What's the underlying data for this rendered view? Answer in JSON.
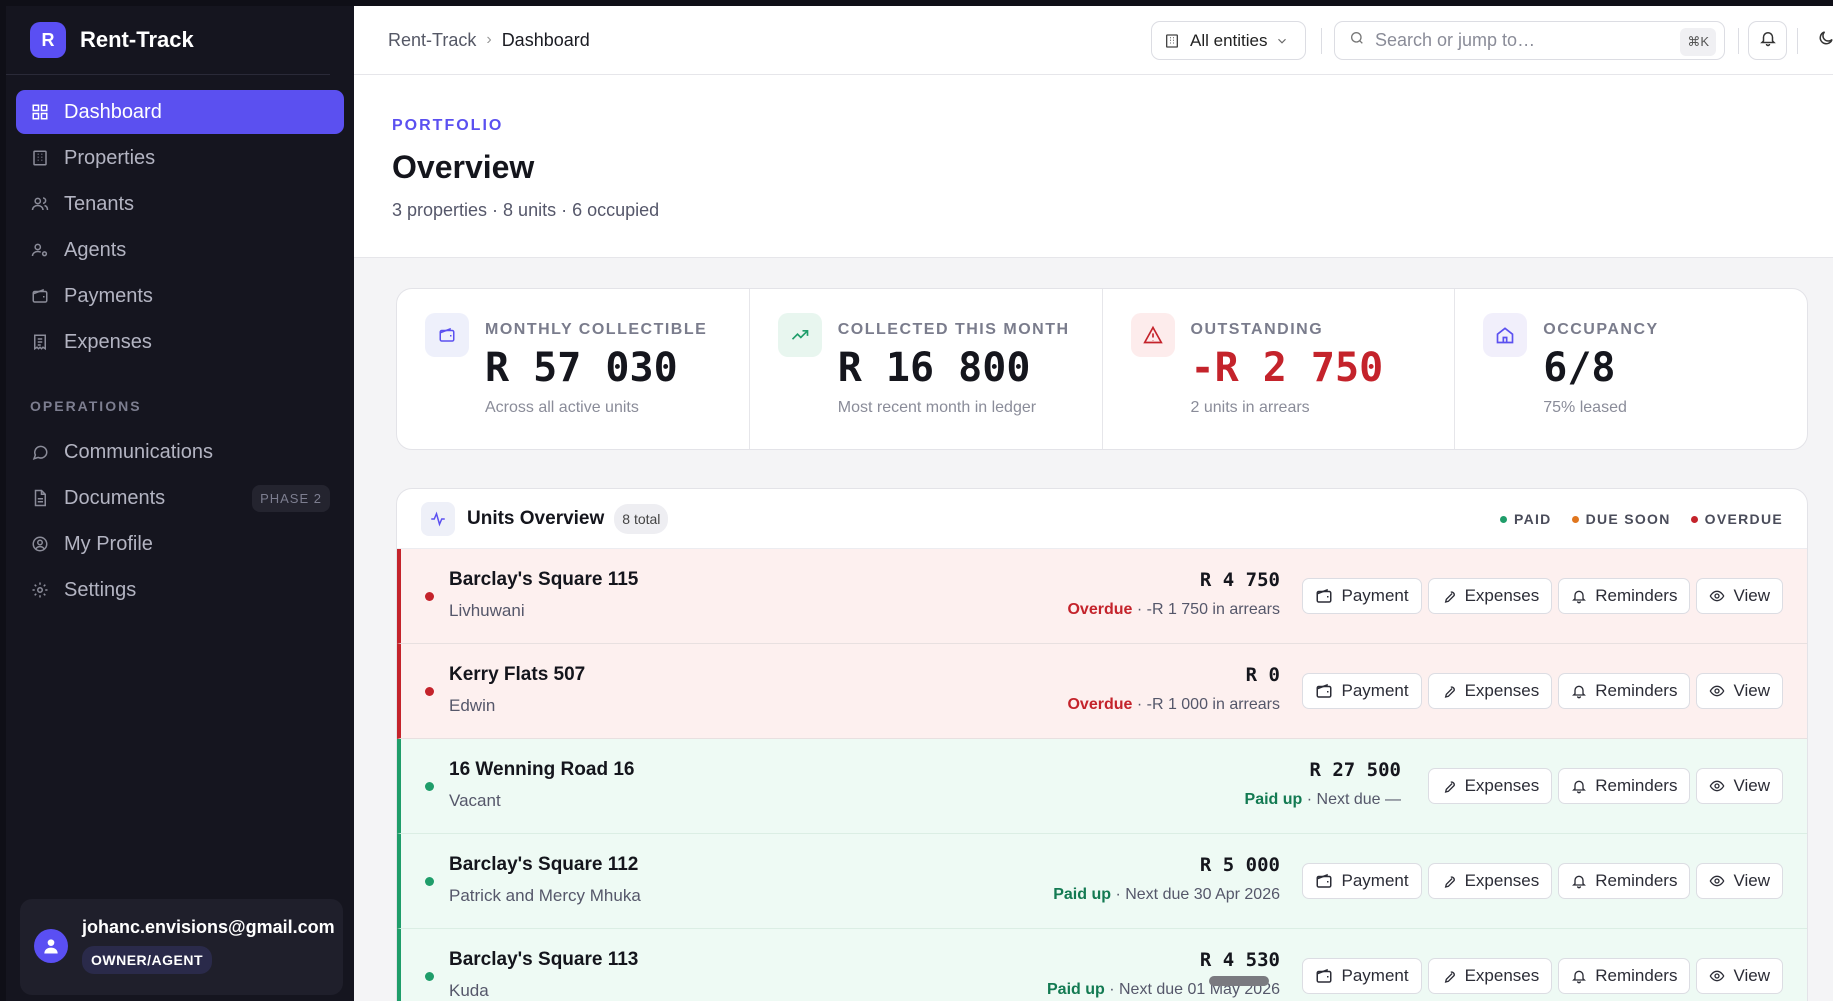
{
  "brand": {
    "logo_letter": "R",
    "name": "Rent-Track"
  },
  "sidebar": {
    "items": [
      {
        "label": "Dashboard",
        "icon": "dashboard-icon",
        "active": true
      },
      {
        "label": "Properties",
        "icon": "building-icon"
      },
      {
        "label": "Tenants",
        "icon": "users-icon"
      },
      {
        "label": "Agents",
        "icon": "user-cog-icon"
      },
      {
        "label": "Payments",
        "icon": "wallet-icon"
      },
      {
        "label": "Expenses",
        "icon": "receipt-icon"
      }
    ],
    "section_label": "OPERATIONS",
    "ops_items": [
      {
        "label": "Communications",
        "icon": "chat-icon"
      },
      {
        "label": "Documents",
        "icon": "document-icon",
        "badge": "PHASE 2"
      },
      {
        "label": "My Profile",
        "icon": "profile-icon"
      },
      {
        "label": "Settings",
        "icon": "gear-icon"
      }
    ],
    "user": {
      "email": "johanc.envisions@gmail.com",
      "role": "OWNER/AGENT"
    }
  },
  "topbar": {
    "breadcrumb_root": "Rent-Track",
    "breadcrumb_sep": "›",
    "breadcrumb_current": "Dashboard",
    "entity_label": "All entities",
    "search_placeholder": "Search or jump to…",
    "search_shortcut": "⌘K"
  },
  "header": {
    "eyebrow": "PORTFOLIO",
    "title": "Overview",
    "subtitle": "3 properties · 8 units · 6 occupied"
  },
  "stats": [
    {
      "label": "MONTHLY COLLECTIBLE",
      "value": "R 57 030",
      "note": "Across all active units",
      "icon": "wallet-icon",
      "accent": "#5b50f0",
      "bg": "#eef0fb"
    },
    {
      "label": "COLLECTED THIS MONTH",
      "value": "R 16 800",
      "note": "Most recent month in ledger",
      "icon": "trending-up-icon",
      "accent": "#1f9d6a",
      "bg": "#e8f6ef"
    },
    {
      "label": "OUTSTANDING",
      "value": "-R 2 750",
      "note": "2 units in arrears",
      "icon": "alert-icon",
      "accent": "#c4232b",
      "bg": "#fdecec",
      "negative": true
    },
    {
      "label": "OCCUPANCY",
      "value": "6/8",
      "note": "75% leased",
      "icon": "home-icon",
      "accent": "#5b50f0",
      "bg": "#f1effb"
    }
  ],
  "units": {
    "title": "Units Overview",
    "count": "8 total",
    "legend": [
      {
        "label": "PAID",
        "color": "#1f9d6a"
      },
      {
        "label": "DUE SOON",
        "color": "#e0761e"
      },
      {
        "label": "OVERDUE",
        "color": "#c4232b"
      }
    ],
    "rows": [
      {
        "name": "Barclay's Square 115",
        "tenant": "Livhuwani",
        "amount": "R 4 750",
        "status": "overdue",
        "status_label": "Overdue",
        "status_detail": " · -R 1 750 in arrears",
        "has_payment": true
      },
      {
        "name": "Kerry Flats 507",
        "tenant": "Edwin",
        "amount": "R 0",
        "status": "overdue",
        "status_label": "Overdue",
        "status_detail": " · -R 1 000 in arrears",
        "has_payment": true
      },
      {
        "name": "16 Wenning Road 16",
        "tenant": "Vacant",
        "amount": "R 27 500",
        "status": "paid",
        "status_label": "Paid up",
        "status_detail": " · Next due —",
        "has_payment": false
      },
      {
        "name": "Barclay's Square 112",
        "tenant": "Patrick and Mercy Mhuka",
        "amount": "R 5 000",
        "status": "paid",
        "status_label": "Paid up",
        "status_detail": " · Next due 30 Apr 2026",
        "has_payment": true
      },
      {
        "name": "Barclay's Square 113",
        "tenant": "Kuda",
        "amount": "R 4 530",
        "status": "paid",
        "status_label": "Paid up",
        "status_detail": " · Next due 01 May 2026",
        "has_payment": true
      }
    ],
    "actions": {
      "payment": "Payment",
      "expenses": "Expenses",
      "reminders": "Reminders",
      "view": "View"
    }
  }
}
